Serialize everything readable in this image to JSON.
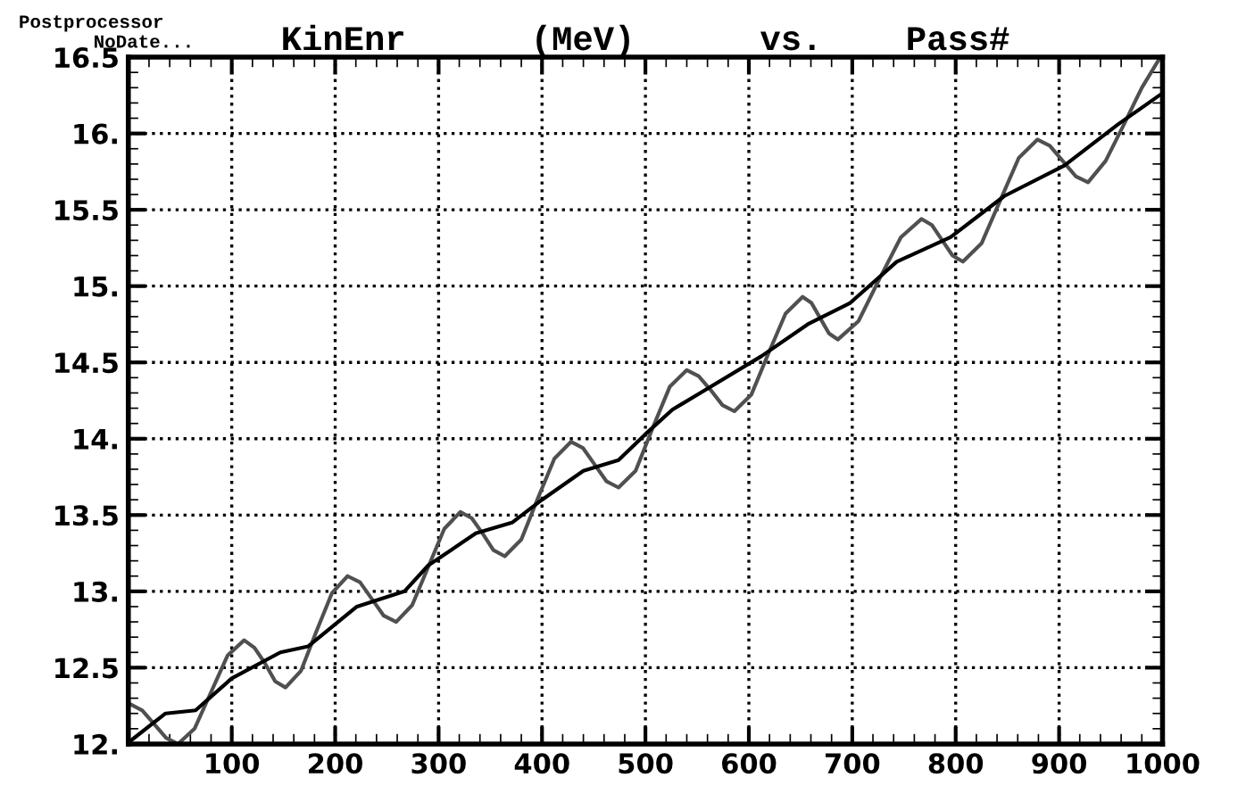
{
  "chart_data": {
    "type": "line",
    "title": "KinEnr      (MeV)      vs.    Pass#",
    "annotations": [
      "Postprocessor",
      "NoDate..."
    ],
    "xlim": [
      0,
      1000
    ],
    "xticks": [
      {
        "value": 0,
        "label": null
      },
      100,
      200,
      300,
      400,
      500,
      600,
      700,
      800,
      900,
      1000
    ],
    "ylim": [
      12,
      16.5
    ],
    "yticks": [
      {
        "value": 12,
        "label": "12."
      },
      12.5,
      {
        "value": 13,
        "label": "13."
      },
      13.5,
      {
        "value": 14,
        "label": "14."
      },
      14.5,
      {
        "value": 15,
        "label": "15."
      },
      15.5,
      {
        "value": 16,
        "label": "16."
      },
      16.5
    ],
    "grid": true,
    "legend": false,
    "marker": "none",
    "series": [
      {
        "color": "#505050",
        "line_style": "solid",
        "x": [
          2,
          13.5,
          25,
          36.5,
          48,
          64,
          80,
          96,
          112,
          122,
          132,
          142,
          152,
          167,
          182,
          197,
          212,
          224,
          235.5,
          247,
          259,
          274.5,
          290,
          305.5,
          321,
          332,
          342.5,
          353,
          364,
          380,
          396,
          412,
          428,
          439.5,
          451,
          462.5,
          474,
          490.5,
          507,
          523.5,
          540,
          551.5,
          563,
          574.5,
          586,
          602.5,
          619,
          635.5,
          652,
          660.5,
          669,
          677.5,
          686,
          706,
          726.5,
          747,
          767,
          777,
          787,
          797,
          807,
          825,
          843,
          861,
          879,
          891,
          903.5,
          916,
          928,
          945,
          962,
          980,
          997
        ],
        "values": [
          12.26,
          12.22,
          12.13,
          12.04,
          12.0,
          12.1,
          12.34,
          12.58,
          12.68,
          12.63,
          12.53,
          12.41,
          12.37,
          12.48,
          12.74,
          12.99,
          13.1,
          13.06,
          12.95,
          12.84,
          12.8,
          12.91,
          13.16,
          13.41,
          13.52,
          13.48,
          13.38,
          13.27,
          13.23,
          13.34,
          13.61,
          13.87,
          13.98,
          13.94,
          13.83,
          13.72,
          13.68,
          13.79,
          14.07,
          14.34,
          14.45,
          14.41,
          14.32,
          14.22,
          14.18,
          14.29,
          14.56,
          14.82,
          14.93,
          14.89,
          14.79,
          14.69,
          14.65,
          14.77,
          15.05,
          15.32,
          15.44,
          15.4,
          15.3,
          15.2,
          15.16,
          15.28,
          15.56,
          15.84,
          15.96,
          15.92,
          15.82,
          15.72,
          15.68,
          15.82,
          16.05,
          16.3,
          16.49
        ]
      },
      {
        "color": "#000000",
        "line_style": "solid",
        "x": [
          2,
          36,
          65,
          100,
          147,
          174,
          221,
          267,
          290,
          336,
          371,
          400,
          440,
          474,
          500,
          526,
          553,
          612,
          657,
          698,
          743,
          795,
          847,
          905,
          957,
          997
        ],
        "values": [
          12.02,
          12.2,
          12.22,
          12.43,
          12.6,
          12.64,
          12.9,
          13.0,
          13.17,
          13.38,
          13.45,
          13.6,
          13.79,
          13.86,
          14.03,
          14.19,
          14.3,
          14.54,
          14.75,
          14.89,
          15.16,
          15.32,
          15.59,
          15.79,
          16.06,
          16.25
        ]
      }
    ]
  }
}
